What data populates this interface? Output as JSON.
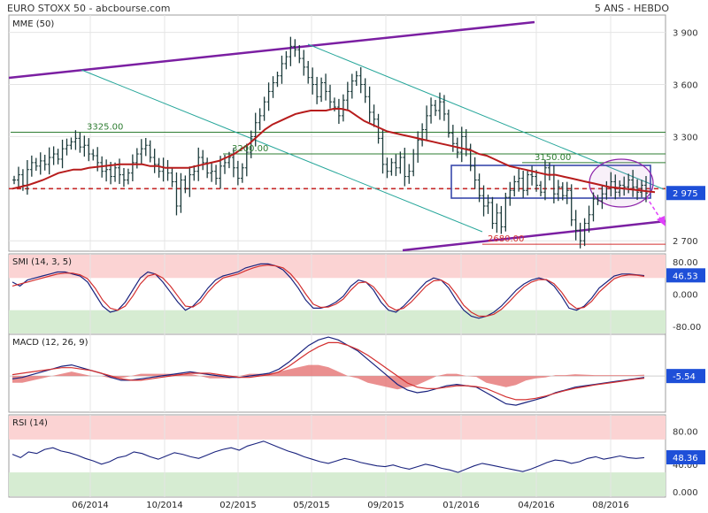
{
  "header": {
    "left": "EURO STOXX 50 - abcbourse.com",
    "right": "5 ANS - HEBDO"
  },
  "chart_data": [
    {
      "type": "line",
      "panel": "price",
      "title": "MME (50)",
      "y_ticks": [
        3900,
        3600,
        3300,
        3000,
        2700
      ],
      "y_tick_labels": [
        "3 900",
        "3 600",
        "3 300",
        "3 000",
        "2 700"
      ],
      "ylim": [
        2640,
        4000
      ],
      "x_labels": [
        "06/2014",
        "10/2014",
        "02/2015",
        "05/2015",
        "09/2015",
        "01/2016",
        "04/2016",
        "08/2016"
      ],
      "last_value": 2975,
      "last_value_label": "2 975",
      "ohlc_close_path": [
        3050,
        3080,
        3020,
        3110,
        3150,
        3130,
        3160,
        3140,
        3180,
        3200,
        3170,
        3230,
        3250,
        3270,
        3290,
        3240,
        3250,
        3200,
        3190,
        3150,
        3100,
        3110,
        3070,
        3120,
        3080,
        3050,
        3090,
        3150,
        3200,
        3230,
        3250,
        3180,
        3140,
        3100,
        3120,
        3090,
        3040,
        2900,
        3050,
        3000,
        3080,
        3100,
        3180,
        3150,
        3090,
        3100,
        3060,
        3130,
        3150,
        3180,
        3120,
        3060,
        3120,
        3210,
        3300,
        3380,
        3420,
        3500,
        3560,
        3610,
        3650,
        3720,
        3760,
        3820,
        3800,
        3750,
        3700,
        3640,
        3600,
        3530,
        3610,
        3560,
        3500,
        3470,
        3420,
        3510,
        3560,
        3620,
        3650,
        3600,
        3530,
        3440,
        3400,
        3290,
        3140,
        3100,
        3150,
        3120,
        3180,
        3070,
        3100,
        3200,
        3280,
        3340,
        3420,
        3480,
        3450,
        3500,
        3430,
        3320,
        3260,
        3210,
        3300,
        3230,
        3130,
        3050,
        2960,
        2900,
        2920,
        2800,
        2860,
        2780,
        2950,
        2990,
        3040,
        3060,
        2990,
        3080,
        3070,
        3020,
        2980,
        3120,
        3080,
        2970,
        3010,
        2960,
        2990,
        2820,
        2760,
        2700,
        2800,
        2850,
        2940,
        2930,
        2970,
        3010,
        3040,
        2980,
        3020,
        3010,
        3050,
        3010,
        2980,
        3020,
        2975
      ],
      "ema_path": [
        3000,
        3010,
        3020,
        3035,
        3050,
        3070,
        3090,
        3100,
        3110,
        3110,
        3120,
        3125,
        3130,
        3135,
        3140,
        3140,
        3140,
        3140,
        3130,
        3130,
        3120,
        3120,
        3120,
        3120,
        3130,
        3140,
        3150,
        3160,
        3180,
        3200,
        3230,
        3260,
        3300,
        3340,
        3370,
        3390,
        3410,
        3430,
        3440,
        3450,
        3450,
        3450,
        3460,
        3460,
        3450,
        3420,
        3390,
        3370,
        3350,
        3330,
        3320,
        3310,
        3300,
        3290,
        3280,
        3270,
        3260,
        3250,
        3240,
        3230,
        3220,
        3200,
        3190,
        3170,
        3150,
        3130,
        3120,
        3110,
        3100,
        3090,
        3080,
        3080,
        3070,
        3060,
        3050,
        3040,
        3030,
        3020,
        3010,
        3005,
        3000,
        2995,
        2990,
        2985,
        2980
      ],
      "ema_color": "#b71c1c",
      "levels": [
        {
          "label": "3325.00",
          "value": 3325,
          "color": "#2e7d32"
        },
        {
          "label": "3200.00",
          "value": 3200,
          "color": "#2e7d32"
        },
        {
          "label": "3150.00",
          "value": 3150,
          "color": "#2e7d32"
        },
        {
          "label": "2680.00",
          "value": 2680,
          "color": "#d32f2f"
        }
      ],
      "support_dashed": 3000,
      "annotations": [
        "upper trendline",
        "lower trendline",
        "descending channel",
        "range box",
        "ellipse",
        "projection arrow"
      ]
    },
    {
      "type": "line",
      "panel": "smi",
      "title": "SMI (14, 3, 5)",
      "y_tick_labels": [
        "80.00",
        "0.000",
        "-80.00"
      ],
      "ylim": [
        -100,
        100
      ],
      "overbought": 40,
      "oversold": -40,
      "last_value_label": "46.53",
      "series": [
        {
          "values": [
            30,
            20,
            35,
            40,
            45,
            50,
            55,
            55,
            50,
            45,
            30,
            0,
            -30,
            -45,
            -40,
            -20,
            10,
            40,
            55,
            50,
            30,
            5,
            -20,
            -40,
            -30,
            -10,
            15,
            35,
            45,
            50,
            55,
            65,
            70,
            75,
            75,
            70,
            60,
            40,
            15,
            -15,
            -35,
            -35,
            -30,
            -20,
            -5,
            20,
            35,
            30,
            10,
            -20,
            -40,
            -45,
            -30,
            -10,
            10,
            30,
            40,
            35,
            15,
            -15,
            -40,
            -55,
            -60,
            -55,
            -45,
            -30,
            -10,
            10,
            25,
            35,
            40,
            35,
            20,
            -5,
            -35,
            -40,
            -30,
            -10,
            15,
            30,
            45,
            50,
            50,
            48,
            46
          ]
        },
        {
          "values": [
            20,
            25,
            30,
            35,
            40,
            45,
            50,
            52,
            52,
            48,
            38,
            15,
            -15,
            -35,
            -40,
            -30,
            -5,
            25,
            45,
            50,
            40,
            20,
            -5,
            -30,
            -32,
            -20,
            5,
            25,
            40,
            45,
            50,
            58,
            65,
            70,
            72,
            70,
            65,
            50,
            28,
            0,
            -25,
            -33,
            -32,
            -25,
            -12,
            10,
            28,
            30,
            18,
            -5,
            -30,
            -40,
            -35,
            -20,
            0,
            20,
            33,
            35,
            24,
            0,
            -28,
            -45,
            -55,
            -55,
            -50,
            -38,
            -20,
            0,
            18,
            30,
            36,
            36,
            26,
            5,
            -22,
            -36,
            -33,
            -18,
            5,
            22,
            38,
            45,
            48,
            47,
            44
          ]
        }
      ],
      "colors": [
        "#1a237e",
        "#d32f2f"
      ]
    },
    {
      "type": "line",
      "panel": "macd",
      "title": "MACD (12, 26, 9)",
      "last_value_label": "-5.54",
      "ylim": [
        -130,
        150
      ],
      "series": [
        {
          "values": [
            -10,
            -5,
            5,
            15,
            25,
            35,
            40,
            30,
            20,
            10,
            -5,
            -15,
            -15,
            -10,
            -5,
            0,
            5,
            10,
            15,
            10,
            5,
            0,
            -5,
            -5,
            0,
            5,
            10,
            25,
            50,
            80,
            110,
            130,
            140,
            130,
            110,
            90,
            60,
            30,
            0,
            -30,
            -50,
            -60,
            -55,
            -45,
            -35,
            -30,
            -35,
            -40,
            -60,
            -80,
            -100,
            -105,
            -95,
            -85,
            -75,
            -60,
            -50,
            -40,
            -35,
            -30,
            -25,
            -20,
            -15,
            -10,
            -5
          ]
        },
        {
          "values": [
            5,
            10,
            15,
            20,
            25,
            30,
            30,
            25,
            20,
            10,
            0,
            -10,
            -15,
            -15,
            -10,
            -5,
            0,
            5,
            10,
            10,
            10,
            5,
            0,
            -5,
            -5,
            0,
            5,
            15,
            35,
            60,
            85,
            105,
            120,
            120,
            110,
            95,
            75,
            50,
            25,
            0,
            -25,
            -40,
            -45,
            -45,
            -40,
            -35,
            -35,
            -38,
            -45,
            -60,
            -75,
            -85,
            -85,
            -80,
            -72,
            -62,
            -52,
            -44,
            -38,
            -32,
            -27,
            -22,
            -17,
            -12,
            -8
          ]
        }
      ],
      "colors": [
        "#1a237e",
        "#d32f2f"
      ]
    },
    {
      "type": "line",
      "panel": "rsi",
      "title": "RSI (14)",
      "y_tick_labels": [
        "80.00",
        "40.00",
        "0.000"
      ],
      "ylim": [
        0,
        100
      ],
      "overbought": 70,
      "oversold": 30,
      "last_value_label": "48.36",
      "values": [
        52,
        48,
        55,
        53,
        58,
        60,
        56,
        54,
        51,
        47,
        44,
        40,
        43,
        48,
        50,
        55,
        53,
        49,
        46,
        50,
        54,
        52,
        49,
        47,
        51,
        55,
        58,
        60,
        57,
        62,
        65,
        68,
        64,
        60,
        56,
        53,
        49,
        46,
        43,
        41,
        44,
        47,
        45,
        42,
        40,
        38,
        37,
        39,
        36,
        34,
        37,
        40,
        38,
        35,
        33,
        30,
        34,
        38,
        41,
        39,
        37,
        35,
        33,
        31,
        34,
        38,
        42,
        45,
        44,
        41,
        43,
        47,
        49,
        46,
        48,
        50,
        48,
        47,
        48
      ]
    }
  ]
}
